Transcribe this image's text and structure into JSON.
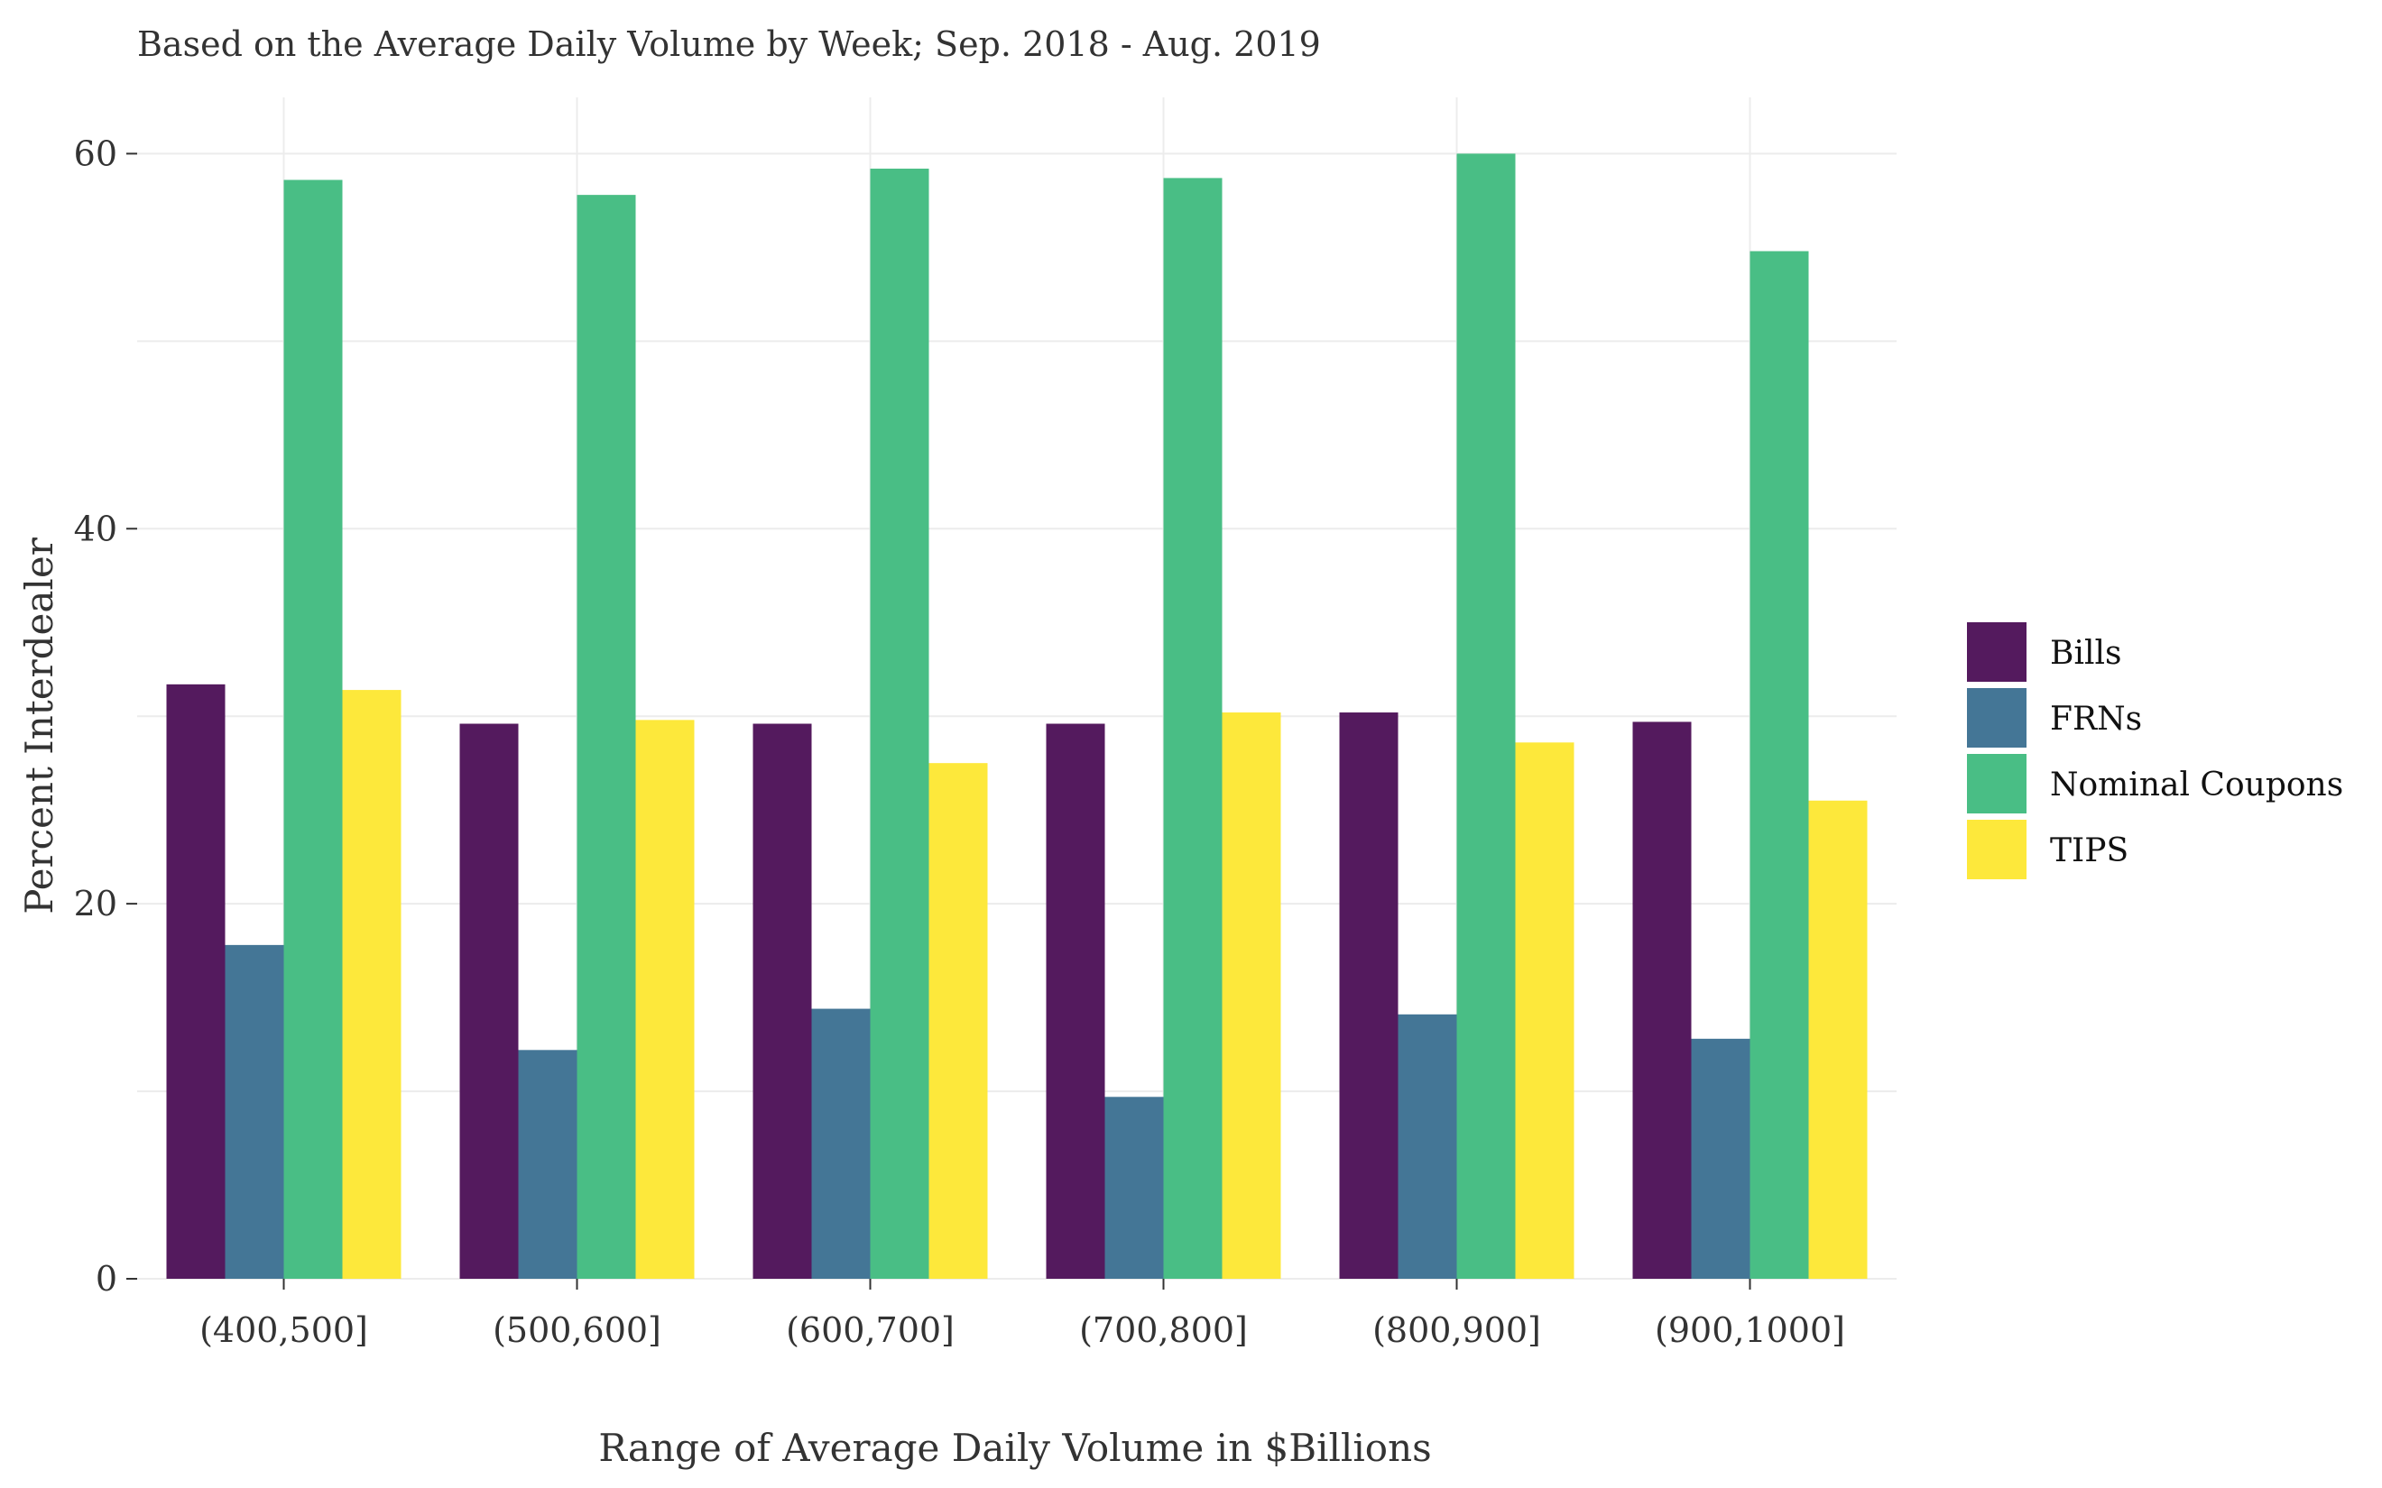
{
  "chart_data": {
    "type": "bar",
    "title": "",
    "subtitle": "Based on the Average Daily Volume by Week; Sep. 2018 - Aug. 2019",
    "xlabel": "Range of Average Daily Volume in $Billions",
    "ylabel": "Percent Interdealer",
    "categories": [
      "(400,500]",
      "(500,600]",
      "(600,700]",
      "(700,800]",
      "(800,900]",
      "(900,1000]"
    ],
    "series": [
      {
        "name": "Bills",
        "color": "#541a5e",
        "values": [
          31.7,
          29.6,
          29.6,
          29.6,
          30.2,
          29.7
        ]
      },
      {
        "name": "FRNs",
        "color": "#447696",
        "values": [
          17.8,
          12.2,
          14.4,
          9.7,
          14.1,
          12.8
        ]
      },
      {
        "name": "Nominal Coupons",
        "color": "#49be85",
        "values": [
          58.6,
          57.8,
          59.2,
          58.7,
          60.0,
          54.8
        ]
      },
      {
        "name": "TIPS",
        "color": "#fde83b",
        "values": [
          31.4,
          29.8,
          27.5,
          30.2,
          28.6,
          25.5
        ]
      }
    ],
    "ylim": [
      0,
      63
    ],
    "yticks": [
      0,
      20,
      40,
      60
    ],
    "grid": true,
    "legend": "right"
  }
}
